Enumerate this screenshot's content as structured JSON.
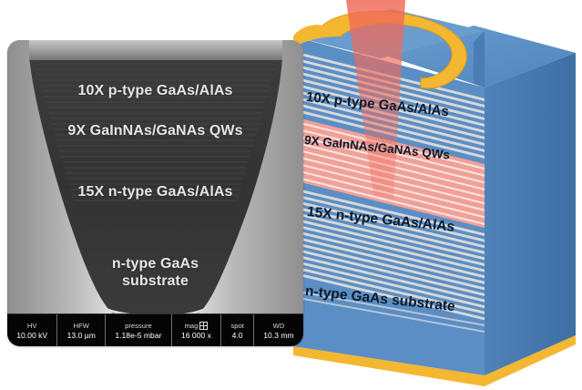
{
  "sem": {
    "layers": {
      "p_mirror": "10X p-type GaAs/AlAs",
      "qws": "9X GaInNAs/GaNAs QWs",
      "n_mirror": "15X n-type GaAs/AlAs",
      "substrate_line1": "n-type GaAs",
      "substrate_line2": "substrate"
    },
    "info_bar": [
      {
        "header": "HV",
        "value": "10.00 kV"
      },
      {
        "header": "HFW",
        "value": "13.0 µm"
      },
      {
        "header": "pressure",
        "value": "1.18e-5 mbar"
      },
      {
        "header": "mag",
        "value": "16 000 x"
      },
      {
        "header": "spot",
        "value": "4.0"
      },
      {
        "header": "WD",
        "value": "10.3 mm"
      }
    ]
  },
  "device": {
    "labels": {
      "p_mirror": "10X p-type GaAs/AlAs",
      "qws": "9X GaInNAs/GaNAs  QWs",
      "n_mirror": "15X n-type GaAs/AlAs",
      "substrate": "n-type GaAs substrate"
    },
    "colors": {
      "gaas_blue": "#5b8ec4",
      "stripe_light": "#d8d8d8",
      "qw_pink": "#f0a097",
      "contact_gold": "#f4b731",
      "laser_beam": "#f06a5a"
    }
  }
}
